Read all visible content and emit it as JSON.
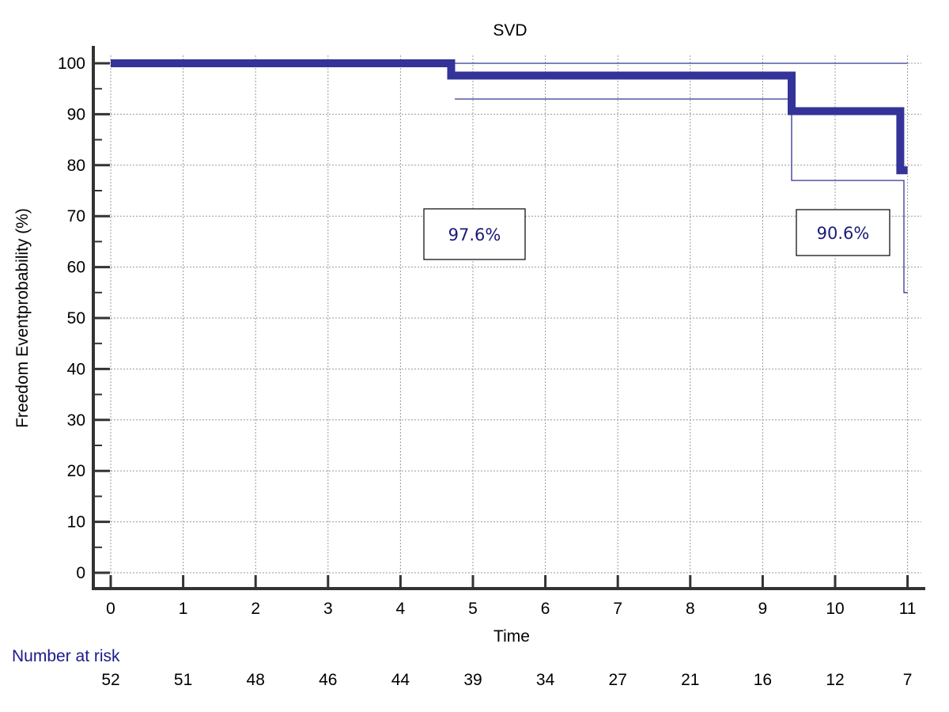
{
  "chart_data": {
    "type": "line",
    "subtype": "kaplan-meier step",
    "title": "SVD",
    "xlabel": "Time",
    "ylabel": "Freedom Eventprobability (%)",
    "xlim": [
      0,
      11
    ],
    "ylim": [
      0,
      100
    ],
    "x_ticks": [
      0,
      1,
      2,
      3,
      4,
      5,
      6,
      7,
      8,
      9,
      10,
      11
    ],
    "y_ticks": [
      0,
      10,
      20,
      30,
      40,
      50,
      60,
      70,
      80,
      90,
      100
    ],
    "grid": true,
    "series": [
      {
        "name": "Survival",
        "style": "thick step",
        "color": "#333399",
        "points": [
          [
            0,
            100
          ],
          [
            4.7,
            100
          ],
          [
            4.7,
            97.6
          ],
          [
            9.4,
            97.6
          ],
          [
            9.4,
            90.6
          ],
          [
            10.9,
            90.6
          ],
          [
            10.9,
            79
          ],
          [
            11,
            79
          ]
        ]
      },
      {
        "name": "Upper CI",
        "style": "thin step",
        "color": "#333399",
        "points": [
          [
            4.7,
            100
          ],
          [
            11,
            100
          ]
        ]
      },
      {
        "name": "Lower CI",
        "style": "thin step",
        "color": "#333399",
        "points": [
          [
            4.75,
            93
          ],
          [
            9.4,
            93
          ],
          [
            9.4,
            77
          ],
          [
            10.95,
            77
          ],
          [
            10.95,
            55
          ],
          [
            11,
            55
          ]
        ]
      }
    ],
    "annotations": [
      {
        "text": "97.6%",
        "x": 5,
        "y": 66
      },
      {
        "text": "90.6%",
        "x": 10,
        "y": 66
      }
    ],
    "number_at_risk": {
      "label": "Number at risk",
      "values": [
        52,
        51,
        48,
        46,
        44,
        39,
        34,
        27,
        21,
        16,
        12,
        7
      ]
    }
  }
}
